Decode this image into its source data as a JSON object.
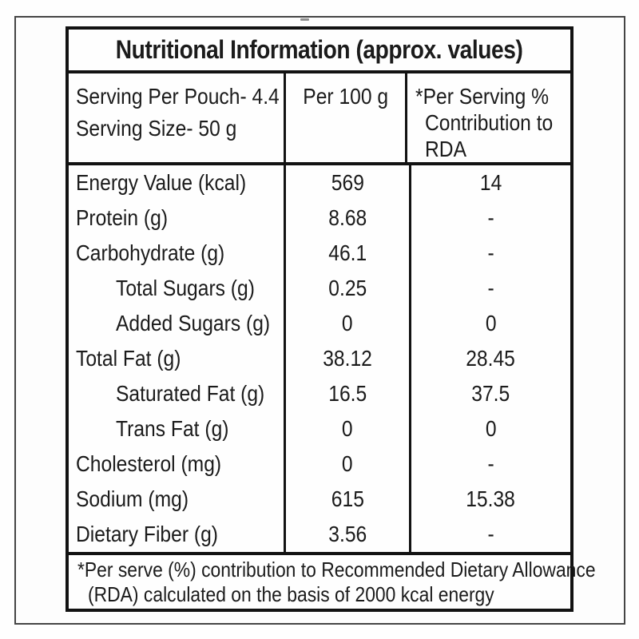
{
  "label": {
    "title": "Nutritional Information (approx. values)",
    "header": {
      "serving_lines": [
        "Serving Per Pouch- 4.4",
        "Serving Size- 50 g"
      ],
      "per100_label": "Per 100 g",
      "rda_lines": [
        "*Per Serving %",
        "Contribution to",
        "RDA"
      ]
    },
    "rows": [
      {
        "label": "Energy Value (kcal)",
        "per100": "569",
        "rda": "14"
      },
      {
        "label": "Protein (g)",
        "per100": "8.68",
        "rda": "-"
      },
      {
        "label": "Carbohydrate (g)",
        "per100": "46.1",
        "rda": "-"
      },
      {
        "label": "Total Sugars (g)",
        "per100": "0.25",
        "rda": "-"
      },
      {
        "label": "Added Sugars (g)",
        "per100": "0",
        "rda": "0"
      },
      {
        "label": "Total Fat (g)",
        "per100": "38.12",
        "rda": "28.45"
      },
      {
        "label": "Saturated Fat (g)",
        "per100": "16.5",
        "rda": "37.5"
      },
      {
        "label": "Trans Fat (g)",
        "per100": "0",
        "rda": "0"
      },
      {
        "label": "Cholesterol (mg)",
        "per100": "0",
        "rda": "-"
      },
      {
        "label": "Sodium (mg)",
        "per100": "615",
        "rda": "15.38"
      },
      {
        "label": "Dietary Fiber (g)",
        "per100": "3.56",
        "rda": "-"
      }
    ],
    "footnote_lines": [
      "*Per serve (%) contribution to Recommended Dietary Allowance",
      "(RDA) calculated on the basis of 2000 kcal energy"
    ],
    "colors": {
      "border": "#121212",
      "text": "#1b1b1b",
      "background": "#fefefe"
    }
  }
}
